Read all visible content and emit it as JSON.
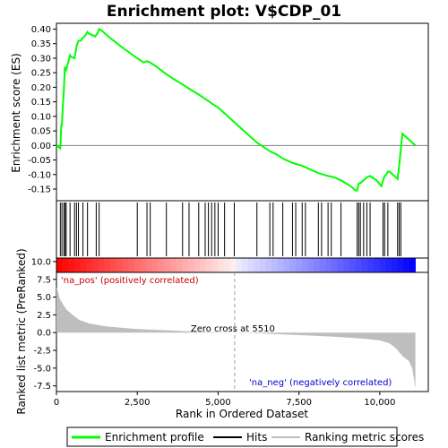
{
  "chart_data": {
    "type": "line",
    "title": "Enrichment plot: V$CDP_01",
    "xlabel": "Rank in Ordered Dataset",
    "top_ylabel": "Enrichment score (ES)",
    "bottom_ylabel": "Ranked list metric (PreRanked)",
    "xlim": [
      0,
      11500
    ],
    "x_ticks": [
      0,
      2500,
      5000,
      7500,
      10000
    ],
    "x_tick_labels": [
      "0",
      "2,500",
      "5,000",
      "7,500",
      "10,000"
    ],
    "es_ylim": [
      -0.19,
      0.42
    ],
    "es_ticks": [
      0.4,
      0.35,
      0.3,
      0.25,
      0.2,
      0.15,
      0.1,
      0.05,
      0.0,
      -0.05,
      -0.1,
      -0.15
    ],
    "es_tick_labels": [
      "0.40",
      "0.35",
      "0.30",
      "0.25",
      "0.20",
      "0.15",
      "0.10",
      "0.05",
      "0.00",
      "-0.05",
      "-0.10",
      "-0.15"
    ],
    "metric_ylim": [
      -8.3,
      10.5
    ],
    "metric_ticks": [
      10.0,
      7.5,
      5.0,
      2.5,
      0.0,
      -2.5,
      -5.0,
      -7.5
    ],
    "metric_tick_labels": [
      "10.0",
      "7.5",
      "5.0",
      "2.5",
      "0.0",
      "-2.5",
      "-5.0",
      "-7.5"
    ],
    "grid": false,
    "legend_position": "bottom",
    "series": [
      {
        "name": "Enrichment profile",
        "color": "#00ff00",
        "x": [
          0,
          120,
          150,
          170,
          200,
          230,
          260,
          280,
          300,
          420,
          450,
          560,
          620,
          680,
          750,
          820,
          870,
          960,
          1000,
          1200,
          1230,
          1290,
          1320,
          1400,
          1600,
          2000,
          2500,
          2700,
          2800,
          2900,
          3100,
          3400,
          3600,
          3900,
          4100,
          4400,
          4600,
          4800,
          5000,
          5200,
          5500,
          5800,
          6200,
          6600,
          6800,
          7000,
          7300,
          7600,
          7800,
          8100,
          8400,
          8600,
          8800,
          9100,
          9250,
          9300,
          9350,
          9400,
          9500,
          9550,
          9600,
          9700,
          9900,
          10050,
          10100,
          10150,
          10200,
          10250,
          10300,
          10350,
          10500,
          10550,
          10600,
          10700,
          11100
        ],
        "y": [
          0.0,
          -0.01,
          0.07,
          0.07,
          0.14,
          0.19,
          0.27,
          0.265,
          0.26,
          0.31,
          0.305,
          0.3,
          0.34,
          0.36,
          0.36,
          0.37,
          0.375,
          0.39,
          0.385,
          0.375,
          0.38,
          0.39,
          0.4,
          0.395,
          0.375,
          0.34,
          0.3,
          0.285,
          0.29,
          0.285,
          0.27,
          0.245,
          0.23,
          0.21,
          0.195,
          0.175,
          0.16,
          0.145,
          0.13,
          0.11,
          0.08,
          0.05,
          0.01,
          -0.02,
          -0.03,
          -0.045,
          -0.06,
          -0.07,
          -0.08,
          -0.095,
          -0.105,
          -0.11,
          -0.12,
          -0.14,
          -0.155,
          -0.155,
          -0.13,
          -0.13,
          -0.12,
          -0.115,
          -0.11,
          -0.105,
          -0.12,
          -0.14,
          -0.12,
          -0.105,
          -0.1,
          -0.09,
          -0.09,
          -0.095,
          -0.11,
          -0.115,
          -0.07,
          0.04,
          0.0
        ]
      },
      {
        "name": "Hits",
        "color": "#000000",
        "x": [
          120,
          170,
          230,
          270,
          300,
          420,
          560,
          620,
          680,
          820,
          960,
          1230,
          1320,
          2500,
          2800,
          2900,
          3400,
          3900,
          4100,
          4400,
          4600,
          4700,
          4800,
          4900,
          5000,
          5200,
          5500,
          6200,
          6600,
          6700,
          7000,
          7300,
          7400,
          7600,
          7700,
          8100,
          8200,
          8400,
          8500,
          8800,
          9300,
          9350,
          9400,
          9500,
          9600,
          9700,
          10100,
          10150,
          10250,
          10550,
          10600,
          10650
        ]
      },
      {
        "name": "Ranking metric scores",
        "color": "#bebebe",
        "x": [
          0,
          50,
          100,
          200,
          300,
          500,
          700,
          1000,
          1500,
          2000,
          2500,
          3000,
          3500,
          4000,
          4500,
          5000,
          5510,
          6000,
          6500,
          7000,
          7500,
          8000,
          8500,
          9000,
          9500,
          10000,
          10300,
          10500,
          10700,
          10900,
          11000,
          11100
        ],
        "y": [
          6.3,
          5.8,
          4.8,
          4.0,
          3.3,
          2.5,
          1.8,
          1.3,
          0.9,
          0.7,
          0.5,
          0.4,
          0.3,
          0.2,
          0.1,
          0.05,
          0.0,
          -0.05,
          -0.15,
          -0.25,
          -0.35,
          -0.45,
          -0.55,
          -0.7,
          -0.85,
          -1.1,
          -1.5,
          -2.2,
          -3.3,
          -4.0,
          -5.0,
          -7.8
        ]
      }
    ],
    "zero_cross_label": "Zero cross at 5510",
    "zero_cross_rank": 5510,
    "pos_label": "'na_pos' (positively correlated)",
    "neg_label": "'na_neg' (negatively correlated)",
    "pos_color": "#ff0000",
    "neg_color": "#0000ff",
    "n_ranks": 11100
  }
}
